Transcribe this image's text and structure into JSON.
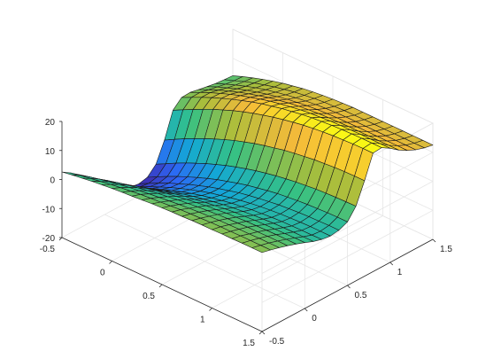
{
  "chart_data": {
    "type": "surface",
    "title": "",
    "xlabel": "",
    "ylabel": "",
    "zlabel": "",
    "grid": true,
    "colormap": "parula",
    "colormap_stops": [
      "#3e26a8",
      "#2d67f5",
      "#13a8d6",
      "#35c185",
      "#a8be3c",
      "#f5ba3a",
      "#f9fa14"
    ],
    "xlim": [
      -0.5,
      1.5
    ],
    "ylim": [
      -0.5,
      1.5
    ],
    "zlim": [
      -20,
      20
    ],
    "x_ticks": [
      "-0.5",
      "0",
      "0.5",
      "1",
      "1.5"
    ],
    "y_ticks": [
      "-0.5",
      "0",
      "0.5",
      "1",
      "1.5"
    ],
    "z_ticks": [
      "-20",
      "-10",
      "0",
      "10",
      "20"
    ],
    "x_tick_values": [
      -0.5,
      0,
      0.5,
      1,
      1.5
    ],
    "y_tick_values": [
      -0.5,
      0,
      0.5,
      1,
      1.5
    ],
    "z_tick_values": [
      -20,
      -10,
      0,
      10,
      20
    ],
    "x": [
      -0.5,
      -0.4,
      -0.3,
      -0.2,
      -0.1,
      0.0,
      0.1,
      0.2,
      0.3,
      0.4,
      0.5,
      0.6,
      0.7,
      0.8,
      0.9,
      1.0,
      1.1,
      1.2,
      1.3,
      1.4,
      1.5
    ],
    "y": [
      -0.5,
      -0.4,
      -0.3,
      -0.2,
      -0.1,
      0.0,
      0.1,
      0.2,
      0.3,
      0.4,
      0.5,
      0.6,
      0.7,
      0.8,
      0.9,
      1.0,
      1.1,
      1.2,
      1.3,
      1.4,
      1.5
    ],
    "z": [
      [
        2.6,
        3.2,
        3.7,
        4.2,
        4.6,
        5.0,
        5.3,
        5.6,
        5.9,
        6.2,
        6.4,
        6.6,
        6.7,
        6.9,
        7.0,
        7.0,
        7.1,
        7.1,
        7.2,
        7.2,
        7.2
      ],
      [
        0.7,
        1.4,
        2.0,
        2.6,
        3.2,
        3.7,
        4.1,
        4.6,
        4.9,
        5.2,
        5.5,
        5.8,
        6.0,
        6.1,
        6.3,
        6.4,
        6.4,
        6.5,
        6.5,
        6.5,
        6.5
      ],
      [
        -1.5,
        -0.6,
        0.2,
        0.9,
        1.6,
        2.2,
        2.7,
        3.2,
        3.6,
        4.0,
        4.4,
        4.7,
        5.0,
        5.2,
        5.4,
        5.5,
        5.6,
        5.6,
        5.7,
        5.7,
        5.7
      ],
      [
        -4.0,
        -2.9,
        -1.9,
        -1.0,
        -0.2,
        0.5,
        1.1,
        1.8,
        2.3,
        2.8,
        3.2,
        3.6,
        3.9,
        4.2,
        4.4,
        4.5,
        4.7,
        4.7,
        4.8,
        4.8,
        4.8
      ],
      [
        -6.8,
        -5.5,
        -4.3,
        -3.2,
        -2.2,
        -1.3,
        -0.5,
        0.2,
        0.8,
        1.4,
        1.9,
        2.4,
        2.7,
        3.1,
        3.3,
        3.5,
        3.6,
        3.7,
        3.8,
        3.8,
        3.8
      ],
      [
        -9.6,
        -8.1,
        -6.8,
        -5.5,
        -4.4,
        -3.3,
        -2.4,
        -1.6,
        -0.8,
        -0.2,
        0.4,
        0.9,
        1.4,
        1.8,
        2.0,
        2.3,
        2.4,
        2.5,
        2.6,
        2.7,
        2.7
      ],
      [
        -12.1,
        -10.5,
        -9.0,
        -7.6,
        -6.4,
        -5.2,
        -4.2,
        -3.2,
        -2.4,
        -1.7,
        -1.0,
        -0.4,
        0.1,
        0.5,
        0.8,
        1.1,
        1.3,
        1.4,
        1.5,
        1.5,
        1.5
      ],
      [
        -14.1,
        -12.4,
        -10.8,
        -9.3,
        -8.0,
        -6.8,
        -5.7,
        -4.6,
        -3.7,
        -2.9,
        -2.2,
        -1.5,
        -1.0,
        -0.5,
        -0.2,
        0.1,
        0.3,
        0.4,
        0.5,
        0.5,
        0.6
      ],
      [
        -15.3,
        -13.6,
        -11.9,
        -10.4,
        -9.0,
        -7.7,
        -6.5,
        -5.4,
        -4.4,
        -3.6,
        -2.8,
        -2.1,
        -1.5,
        -1.0,
        -0.6,
        -0.3,
        -0.1,
        0.1,
        0.2,
        0.2,
        0.2
      ],
      [
        -15.8,
        -14.0,
        -12.3,
        -10.7,
        -9.3,
        -7.9,
        -6.7,
        -5.5,
        -4.5,
        -3.6,
        -2.7,
        -2.0,
        -1.4,
        -0.9,
        -0.4,
        -0.1,
        0.2,
        0.4,
        0.5,
        0.6,
        0.6
      ],
      [
        -15.1,
        -13.3,
        -11.6,
        -10.0,
        -8.5,
        -7.1,
        -5.8,
        -4.6,
        -3.6,
        -2.6,
        -1.7,
        -1.0,
        -0.3,
        0.3,
        0.7,
        1.1,
        1.4,
        1.6,
        1.8,
        1.9,
        1.9
      ],
      [
        -12.2,
        -10.4,
        -8.6,
        -6.9,
        -5.4,
        -3.9,
        -2.6,
        -1.3,
        -0.2,
        0.8,
        1.7,
        2.5,
        3.2,
        3.8,
        4.3,
        4.7,
        5.1,
        5.3,
        5.5,
        5.6,
        5.7
      ],
      [
        -5.5,
        -3.6,
        -1.8,
        -0.1,
        1.5,
        3.0,
        4.4,
        5.7,
        6.8,
        7.9,
        8.8,
        9.6,
        10.4,
        11.0,
        11.5,
        12.0,
        12.3,
        12.6,
        12.8,
        12.9,
        12.9
      ],
      [
        3.2,
        5.0,
        6.7,
        8.4,
        10.0,
        11.4,
        12.8,
        14.0,
        15.1,
        16.1,
        17.0,
        17.8,
        18.5,
        19.1,
        19.6,
        20.0,
        20.3,
        20.5,
        20.7,
        20.8,
        20.8
      ],
      [
        6.0,
        7.7,
        9.3,
        10.8,
        12.2,
        13.5,
        14.7,
        15.8,
        16.8,
        17.6,
        18.4,
        19.0,
        19.6,
        20.1,
        20.4,
        20.7,
        20.9,
        21.0,
        21.1,
        21.1,
        21.1
      ],
      [
        6.2,
        7.8,
        9.3,
        10.7,
        12.0,
        13.2,
        14.2,
        15.2,
        16.1,
        16.8,
        17.4,
        18.0,
        18.4,
        18.7,
        19.0,
        19.1,
        19.2,
        19.3,
        19.3,
        19.3,
        19.3
      ],
      [
        5.6,
        7.1,
        8.6,
        9.9,
        11.1,
        12.2,
        13.2,
        14.1,
        14.8,
        15.5,
        16.0,
        16.4,
        16.7,
        16.9,
        17.0,
        17.1,
        17.1,
        17.1,
        17.1,
        17.1,
        17.1
      ],
      [
        5.0,
        6.5,
        7.8,
        9.1,
        10.2,
        11.2,
        12.1,
        12.9,
        13.6,
        14.1,
        14.6,
        14.9,
        15.1,
        15.3,
        15.3,
        15.4,
        15.4,
        15.4,
        15.4,
        15.4,
        15.4
      ],
      [
        4.5,
        5.9,
        7.2,
        8.4,
        9.5,
        10.4,
        11.2,
        11.9,
        12.5,
        13.0,
        13.4,
        13.7,
        13.9,
        14.0,
        14.0,
        14.0,
        14.0,
        14.0,
        14.0,
        14.0,
        14.0
      ],
      [
        4.2,
        5.5,
        6.8,
        7.9,
        8.9,
        9.8,
        10.6,
        11.3,
        11.8,
        12.3,
        12.6,
        12.8,
        13.0,
        13.0,
        13.1,
        13.1,
        13.1,
        13.1,
        13.1,
        13.1,
        13.1
      ],
      [
        4.0,
        5.3,
        6.5,
        7.6,
        8.6,
        9.5,
        10.2,
        10.9,
        11.4,
        11.8,
        12.1,
        12.3,
        12.5,
        12.5,
        12.5,
        12.5,
        12.5,
        12.5,
        12.5,
        12.5,
        12.5
      ]
    ]
  }
}
